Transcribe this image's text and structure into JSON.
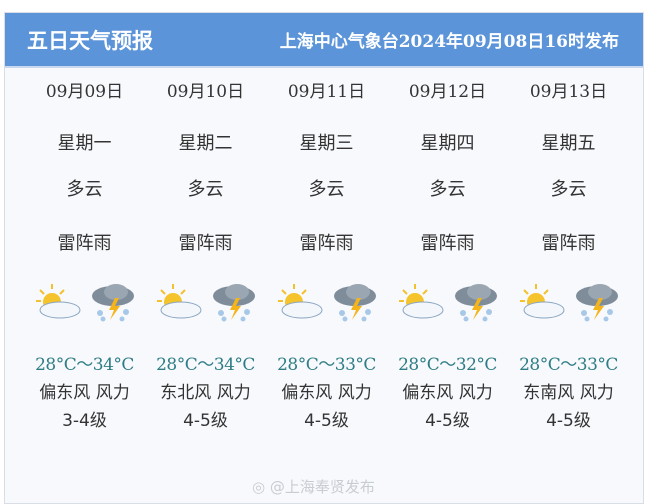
{
  "header": {
    "title": "五日天气预报",
    "issuer": "上海中心气象台2024年09月08日16时发布"
  },
  "days": [
    {
      "date": "09月09日",
      "weekday": "星期一",
      "day_weather": "多云",
      "night_weather": "雷阵雨",
      "temp": "28°C～34°C",
      "wind_dir": "偏东风 风力",
      "wind_level": "3-4级",
      "day_icon": "partly-cloudy-icon",
      "night_icon": "thunderstorm-icon"
    },
    {
      "date": "09月10日",
      "weekday": "星期二",
      "day_weather": "多云",
      "night_weather": "雷阵雨",
      "temp": "28°C～34°C",
      "wind_dir": "东北风 风力",
      "wind_level": "4-5级",
      "day_icon": "partly-cloudy-icon",
      "night_icon": "thunderstorm-icon"
    },
    {
      "date": "09月11日",
      "weekday": "星期三",
      "day_weather": "多云",
      "night_weather": "雷阵雨",
      "temp": "28°C～33°C",
      "wind_dir": "偏东风 风力",
      "wind_level": "4-5级",
      "day_icon": "partly-cloudy-icon",
      "night_icon": "thunderstorm-icon"
    },
    {
      "date": "09月12日",
      "weekday": "星期四",
      "day_weather": "多云",
      "night_weather": "雷阵雨",
      "temp": "28°C～32°C",
      "wind_dir": "偏东风 风力",
      "wind_level": "4-5级",
      "day_icon": "partly-cloudy-icon",
      "night_icon": "thunderstorm-icon"
    },
    {
      "date": "09月13日",
      "weekday": "星期五",
      "day_weather": "多云",
      "night_weather": "雷阵雨",
      "temp": "28°C～33°C",
      "wind_dir": "东南风 风力",
      "wind_level": "4-5级",
      "day_icon": "partly-cloudy-icon",
      "night_icon": "thunderstorm-icon"
    }
  ],
  "watermark": "@上海奉贤发布",
  "colors": {
    "header": "#5b94d8",
    "temp": "#2e7d86"
  }
}
